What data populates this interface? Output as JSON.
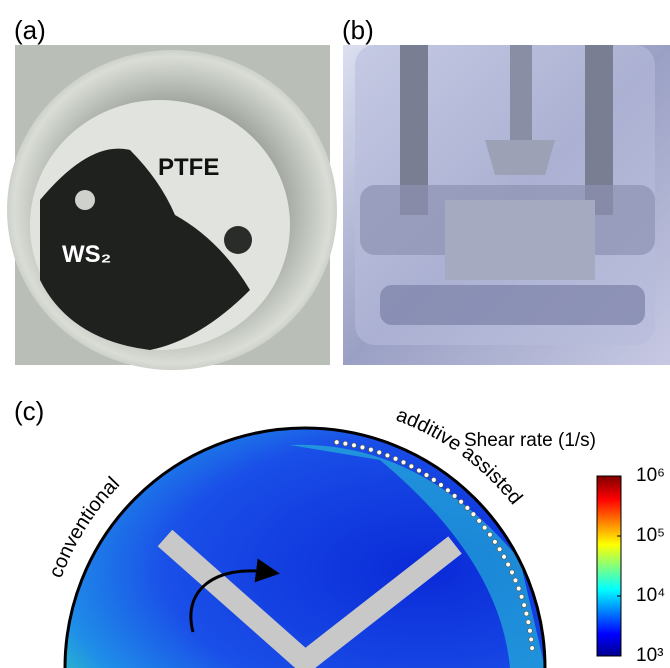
{
  "panels": {
    "a": {
      "label": "(a)",
      "ptfe": "PTFE",
      "ws2": "WS₂"
    },
    "b": {
      "label": "(b)"
    },
    "c": {
      "label": "(c)",
      "left_text": "conventional",
      "right_text": "additive assisted",
      "colorbar": {
        "title": "Shear rate (1/s)",
        "scale": "log",
        "lim": [
          1000,
          1000000
        ],
        "ticks": [
          {
            "value": 1000000,
            "label": "10⁶"
          },
          {
            "value": 100000,
            "label": "10⁵"
          },
          {
            "value": 10000,
            "label": "10⁴"
          },
          {
            "value": 1000,
            "label": "10³"
          }
        ]
      }
    }
  }
}
